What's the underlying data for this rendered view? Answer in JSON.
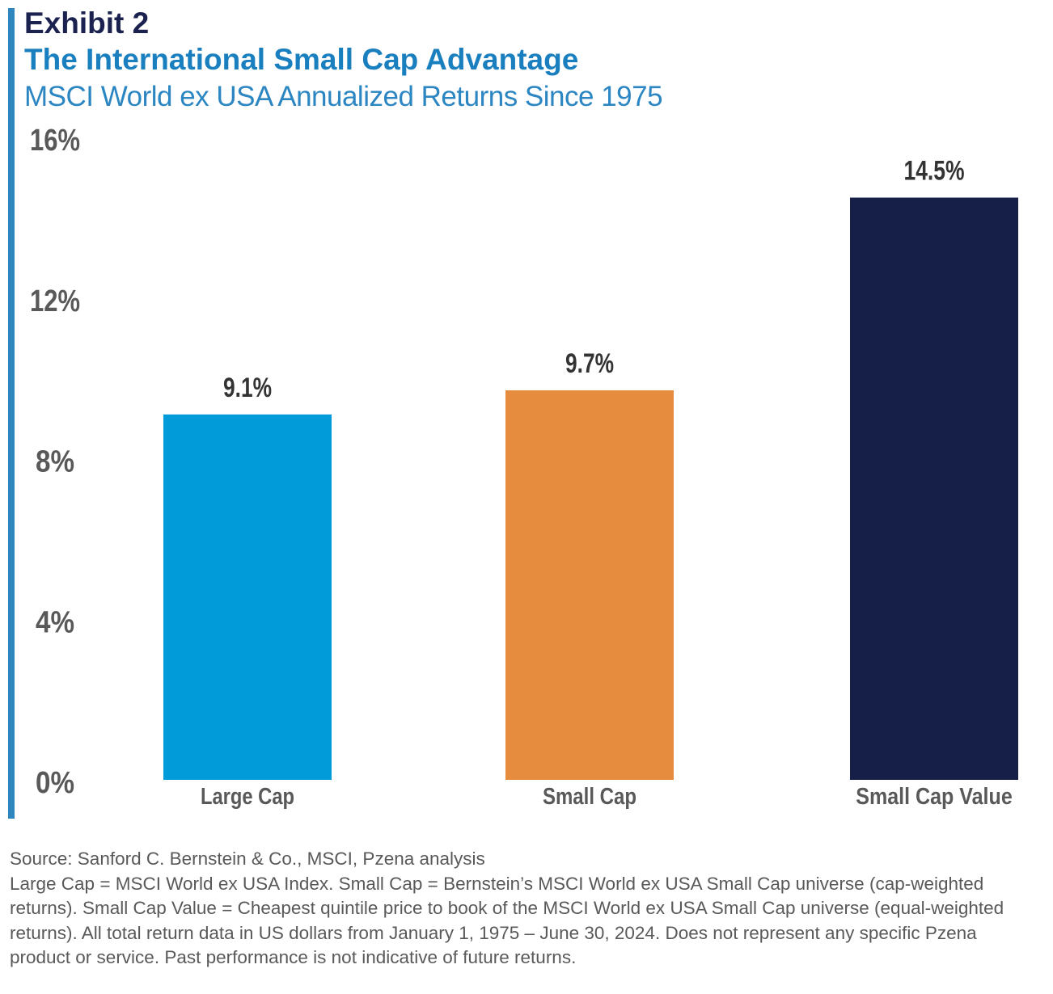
{
  "header": {
    "exhibit": "Exhibit 2",
    "title": "The International Small Cap Advantage",
    "subtitle": "MSCI World ex USA Annualized Returns Since 1975"
  },
  "chart_data": {
    "type": "bar",
    "categories": [
      "Large Cap",
      "Small Cap",
      "Small Cap Value"
    ],
    "values": [
      9.1,
      9.7,
      14.5
    ],
    "data_labels": [
      "9.1%",
      "9.7%",
      "14.5%"
    ],
    "colors": [
      "#009bd8",
      "#e68c3e",
      "#161f47"
    ],
    "ylim": [
      0,
      16
    ],
    "yticks": [
      0,
      4,
      8,
      12,
      16
    ],
    "ytick_labels": [
      "0%",
      "4%",
      "8%",
      "12%",
      "16%"
    ],
    "grid": false,
    "legend": "none"
  },
  "footer": {
    "source": "Source: Sanford C. Bernstein & Co., MSCI, Pzena analysis",
    "notes": "Large Cap = MSCI World ex USA Index. Small Cap = Bernstein’s MSCI World ex USA Small Cap universe (cap-weighted returns). Small Cap Value = Cheapest quintile price to book of the MSCI World ex USA Small Cap universe (equal-weighted returns). All total return data in US dollars from January 1, 1975 – June 30, 2024.  Does not represent any specific Pzena product or service. Past performance is not indicative of future returns."
  }
}
